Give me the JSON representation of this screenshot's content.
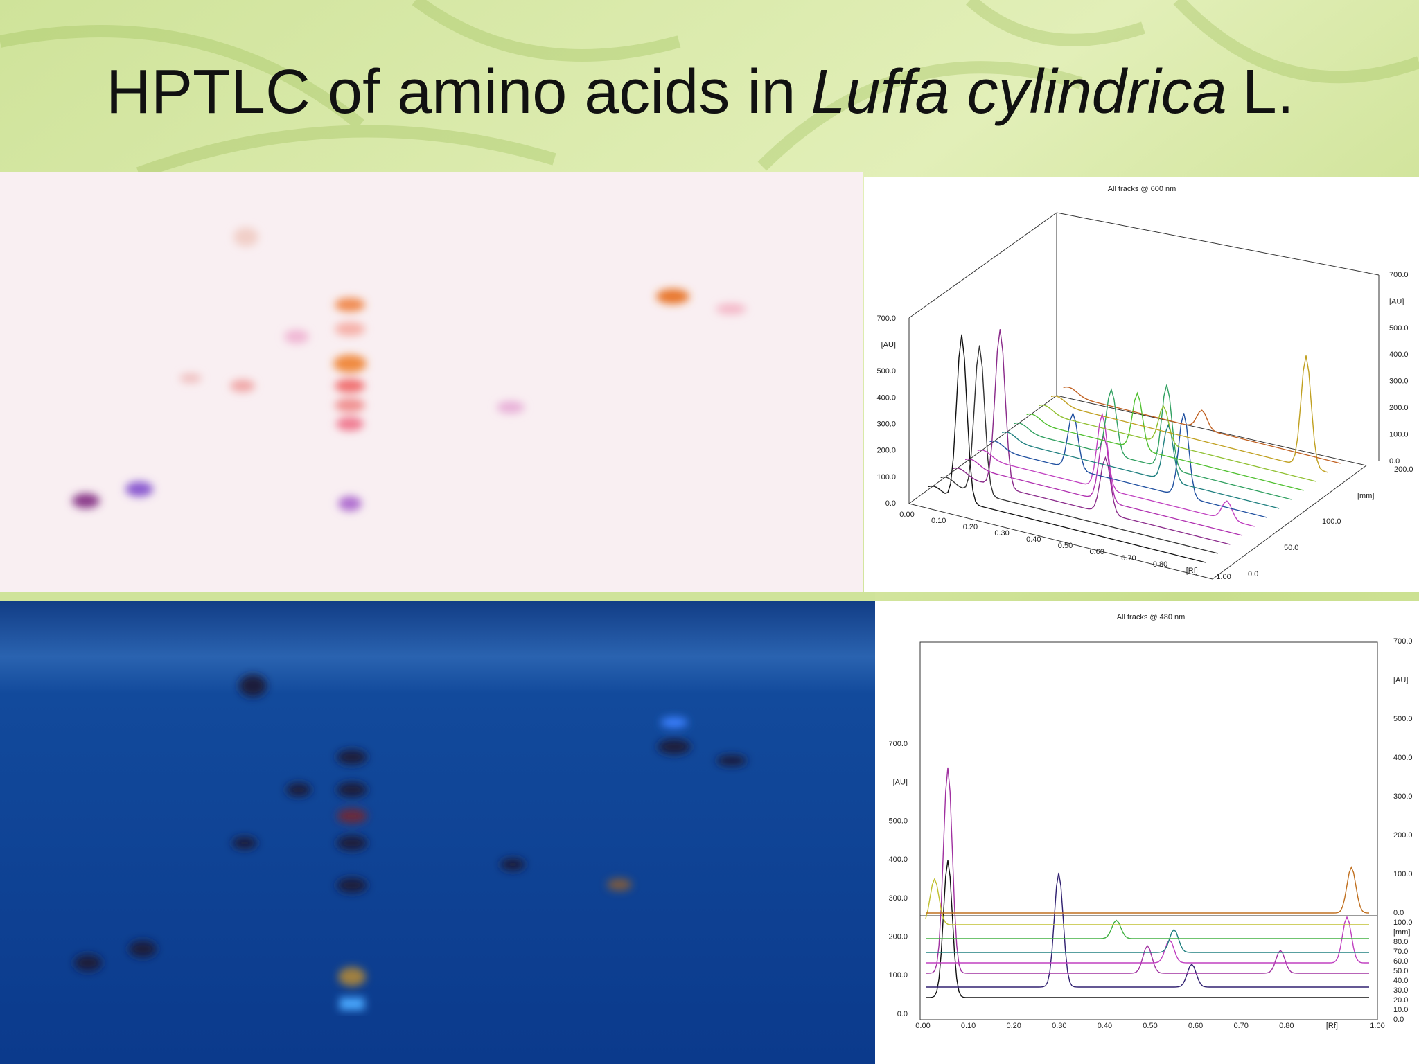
{
  "title": {
    "main": "HPTLC of amino acids in",
    "species": "Luffa cylindrica",
    "suffix": "L."
  },
  "panel_600": {
    "title": "All tracks @ 600 nm",
    "left_axis": [
      "700.0",
      "[AU]",
      "500.0",
      "400.0",
      "300.0",
      "200.0",
      "100.0",
      "0.0"
    ],
    "x_axis": [
      "0.00",
      "0.10",
      "0.20",
      "0.30",
      "0.40",
      "0.50",
      "0.60",
      "0.70",
      "0.80",
      "[Rf]",
      "1.00"
    ],
    "right_axis": [
      "700.0",
      "[AU]",
      "500.0",
      "400.0",
      "300.0",
      "200.0",
      "100.0",
      "0.0"
    ],
    "track_axis": [
      "200.0",
      "[mm]",
      "100.0",
      "50.0",
      "0.0"
    ]
  },
  "panel_480": {
    "title": "All tracks @ 480 nm",
    "left_axis": [
      "700.0",
      "[AU]",
      "500.0",
      "400.0",
      "300.0",
      "200.0",
      "100.0",
      "0.0"
    ],
    "x_axis": [
      "0.00",
      "0.10",
      "0.20",
      "0.30",
      "0.40",
      "0.50",
      "0.60",
      "0.70",
      "0.80",
      "[Rf]",
      "1.00"
    ],
    "right_axis": [
      "700.0",
      "[AU]",
      "500.0",
      "400.0",
      "300.0",
      "200.0",
      "100.0",
      "0.0"
    ],
    "track_axis": [
      "100.0",
      "[mm]",
      "80.0",
      "70.0",
      "60.0",
      "50.0",
      "40.0",
      "30.0",
      "20.0",
      "10.0",
      "0.0"
    ]
  }
}
